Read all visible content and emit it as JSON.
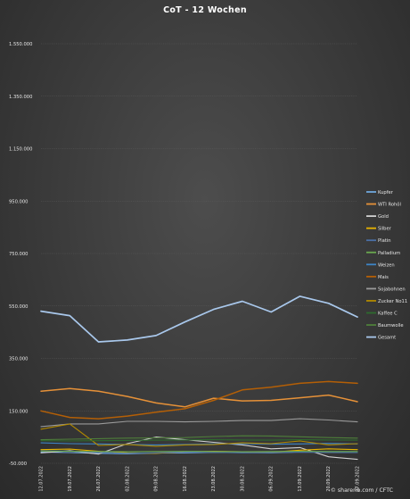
{
  "chart_data": {
    "type": "line",
    "title": "CoT - 12 Wochen",
    "xlabel": "",
    "ylabel": "",
    "ylim": [
      -50000,
      1550000
    ],
    "y_ticks": [
      -50000,
      150000,
      350000,
      550000,
      750000,
      950000,
      1150000,
      1350000,
      1550000
    ],
    "y_tick_labels": [
      "-50.000",
      "150.000",
      "350.000",
      "550.000",
      "750.000",
      "950.000",
      "1.150.000",
      "1.350.000",
      "1.550.000"
    ],
    "grid": true,
    "legend": "right",
    "categories": [
      "12.07.2022",
      "19.07.2022",
      "26.07.2022",
      "02.08.2022",
      "09.08.2022",
      "16.08.2022",
      "23.08.2022",
      "30.08.2022",
      "06.09.2022",
      "13.09.2022",
      "20.09.2022",
      "27.09.2022"
    ],
    "series": [
      {
        "name": "Kupfer",
        "color": "#6fa8dc",
        "values": [
          -7000,
          -9000,
          -12000,
          -14000,
          -11000,
          -10000,
          -8000,
          -9000,
          -10000,
          -7000,
          -8000,
          -9000
        ]
      },
      {
        "name": "WTI Rohöl",
        "color": "#e69138",
        "values": [
          225000,
          235000,
          225000,
          205000,
          180000,
          165000,
          198000,
          188000,
          190000,
          200000,
          210000,
          185000
        ]
      },
      {
        "name": "Gold",
        "color": "#d0d0d0",
        "values": [
          -10000,
          -2000,
          -15000,
          25000,
          50000,
          40000,
          30000,
          20000,
          5000,
          10000,
          -25000,
          -35000
        ]
      },
      {
        "name": "Silber",
        "color": "#e8b400",
        "values": [
          2000,
          4000,
          -4000,
          -10000,
          -12000,
          -6000,
          -4000,
          -6000,
          -8000,
          0,
          5000,
          2000
        ]
      },
      {
        "name": "Platin",
        "color": "#4a6fa5",
        "values": [
          -2000,
          -4000,
          -8000,
          -12000,
          -10000,
          -6000,
          -8000,
          -10000,
          -9000,
          -7000,
          -8000,
          -9000
        ]
      },
      {
        "name": "Palladium",
        "color": "#6aa84f",
        "values": [
          -3000,
          -4000,
          -5000,
          -6000,
          -5000,
          -4000,
          -5000,
          -6000,
          -5000,
          -4000,
          -5000,
          -5000
        ]
      },
      {
        "name": "Weizen",
        "color": "#3d85c6",
        "values": [
          28000,
          25000,
          24000,
          22000,
          20000,
          22000,
          24000,
          25000,
          23000,
          24000,
          26000,
          24000
        ]
      },
      {
        "name": "Mais",
        "color": "#b45f06",
        "values": [
          150000,
          125000,
          120000,
          130000,
          145000,
          158000,
          190000,
          230000,
          240000,
          255000,
          262000,
          255000
        ]
      },
      {
        "name": "Sojabohnen",
        "color": "#9a9a9a",
        "values": [
          90000,
          100000,
          100000,
          110000,
          110000,
          108000,
          110000,
          113000,
          113000,
          120000,
          115000,
          108000
        ]
      },
      {
        "name": "Zucker No11",
        "color": "#b08800",
        "values": [
          80000,
          100000,
          18000,
          22000,
          15000,
          20000,
          22000,
          28000,
          25000,
          35000,
          20000,
          25000
        ]
      },
      {
        "name": "Kaffee C",
        "color": "#2e6b2e",
        "values": [
          36000,
          35000,
          36000,
          37000,
          38000,
          39000,
          40000,
          39000,
          38000,
          40000,
          39000,
          38000
        ]
      },
      {
        "name": "Baumwolle",
        "color": "#4e7f3a",
        "values": [
          40000,
          42000,
          44000,
          46000,
          47000,
          48000,
          52000,
          55000,
          54000,
          51000,
          48000,
          46000
        ]
      },
      {
        "name": "Gesamt",
        "color": "#a9c8ec",
        "values": [
          530000,
          513000,
          413000,
          420000,
          437000,
          489000,
          537000,
          568000,
          527000,
          587000,
          560000,
          508000
        ]
      }
    ]
  },
  "credit": "© sharerib.com / CFTC"
}
